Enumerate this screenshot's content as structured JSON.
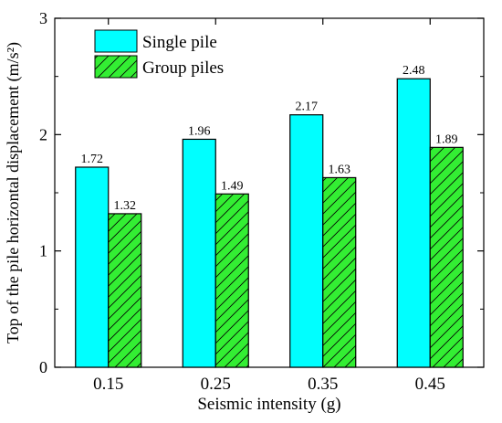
{
  "chart_data": {
    "type": "bar",
    "categories": [
      "0.15",
      "0.25",
      "0.35",
      "0.45"
    ],
    "series": [
      {
        "name": "Single pile",
        "values": [
          1.72,
          1.96,
          2.17,
          2.48
        ],
        "labels": [
          "1.72",
          "1.96",
          "2.17",
          "2.48"
        ],
        "color": "#00FFFF",
        "pattern": "solid"
      },
      {
        "name": "Group piles",
        "values": [
          1.32,
          1.49,
          1.63,
          1.89
        ],
        "labels": [
          "1.32",
          "1.49",
          "1.63",
          "1.89"
        ],
        "color": "#33EE33",
        "pattern": "diagonal-hatch"
      }
    ],
    "xlabel": "Seismic intensity (g)",
    "ylabel": "Top of the pile horizontal displacement (m/s²)",
    "ylim": [
      0,
      3
    ],
    "yticks": [
      "0",
      "1",
      "2",
      "3"
    ],
    "grid": false,
    "legend": "top-left"
  }
}
